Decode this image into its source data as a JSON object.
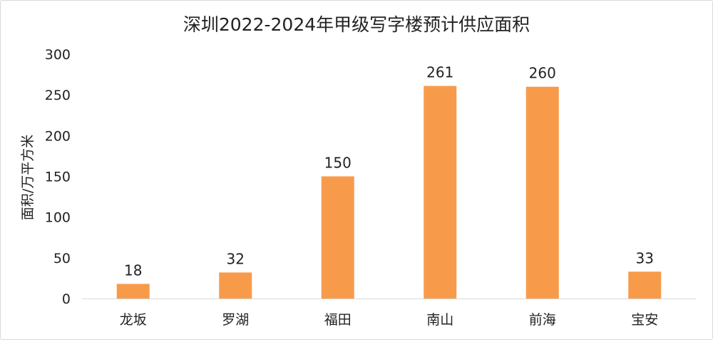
{
  "chart_data": {
    "type": "bar",
    "title": "深圳2022-2024年甲级写字楼预计供应面积",
    "xlabel": "",
    "ylabel": "面积/万平方米",
    "categories": [
      "龙坂",
      "罗湖",
      "福田",
      "南山",
      "前海",
      "宝安"
    ],
    "values": [
      18,
      32,
      150,
      261,
      260,
      33
    ],
    "data_labels": [
      "18",
      "32",
      "150",
      "261",
      "260",
      "33"
    ],
    "ylim": [
      0,
      300
    ],
    "yticks": [
      0,
      50,
      100,
      150,
      200,
      250,
      300
    ],
    "grid": false,
    "legend": "none",
    "bar_color": "#F79B4B",
    "axis_color": "#d9d9d9"
  }
}
